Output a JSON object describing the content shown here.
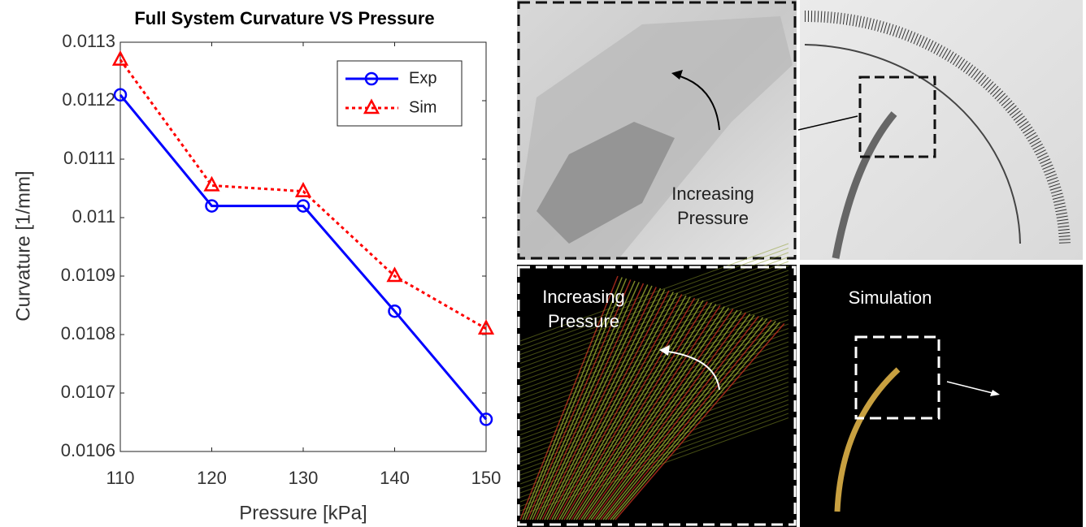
{
  "chart_data": {
    "type": "line",
    "title": "Full System Curvature VS Pressure",
    "x_label": "Pressure [kPa]",
    "y_label": "Curvature [1/mm]",
    "x": [
      110,
      120,
      130,
      140,
      150
    ],
    "series": [
      {
        "name": "Exp",
        "color": "#0000ff",
        "linestyle": "solid",
        "marker": "circle",
        "values": [
          0.01121,
          0.01102,
          0.01102,
          0.01084,
          0.010655
        ]
      },
      {
        "name": "Sim",
        "color": "#ff0000",
        "linestyle": "dotted",
        "marker": "triangle",
        "values": [
          0.01127,
          0.011055,
          0.011045,
          0.0109,
          0.01081
        ]
      }
    ],
    "xlim": [
      110,
      150
    ],
    "xticks": [
      110,
      120,
      130,
      140,
      150
    ],
    "ylim": [
      0.0106,
      0.0113
    ],
    "yticks": [
      0.0106,
      0.0107,
      0.0108,
      0.0109,
      0.011,
      0.0111,
      0.0112,
      0.0113
    ],
    "legend": "upper right"
  },
  "panels": [
    {
      "label": [
        "Increasing",
        "Pressure"
      ]
    },
    {
      "label": [
        "Increasing",
        "Pressure"
      ]
    },
    {
      "label": [
        "Simulation"
      ]
    }
  ]
}
